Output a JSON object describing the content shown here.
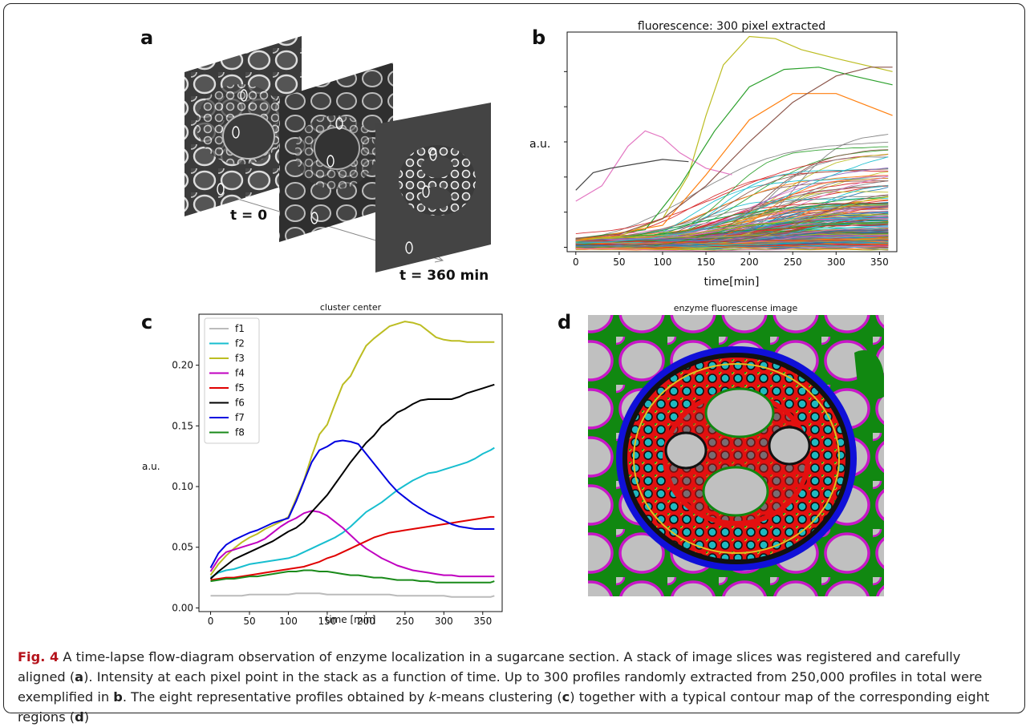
{
  "panel_labels": {
    "a": "a",
    "b": "b",
    "c": "c",
    "d": "d"
  },
  "panel_a": {
    "t0_label": "t = 0",
    "t360_label": "t = 360 min",
    "image_desc": "stack of three fluorescence image slices of a sugarcane section with ellipse markers"
  },
  "panel_d": {
    "title": "enzyme fluorescense image",
    "colors": {
      "gray": "#c0c0c0",
      "green": "#118811",
      "magenta": "#c817c8",
      "blue": "#1010d8",
      "red": "#e31010",
      "cyan": "#20b8c0",
      "black": "#111111",
      "yellow": "#e0c020"
    }
  },
  "caption": {
    "fig_label": "Fig. 4",
    "s1": " A time-lapse flow-diagram observation of enzyme localization in a sugarcane section. A stack of image slices was registered and carefully aligned (",
    "a": "a",
    "s2": "). Intensity at each pixel point in the stack as a function of time. Up to 300 profiles randomly extracted from 250,000 profiles in total were exemplified in ",
    "b": "b",
    "s3": ". The eight representative profiles obtained by ",
    "k": "k",
    "s4": "-means clustering (",
    "c": "c",
    "s5": ") together with a typical contour map of the corresponding eight regions (",
    "d": "d",
    "s6": ")"
  },
  "chart_data": [
    {
      "panel": "b",
      "type": "line",
      "title": "fluorescence: 300 pixel extracted",
      "xlabel": "time[min]",
      "ylabel": "a.u.",
      "xlim": [
        -10,
        370
      ],
      "ylim": [
        0,
        1
      ],
      "x_ticks": [
        0,
        50,
        100,
        150,
        200,
        250,
        300,
        350
      ],
      "y_ticks_unlabeled": true,
      "series_count": 300,
      "representative_series": [
        {
          "color": "#bcbd22",
          "x": [
            0,
            50,
            100,
            130,
            150,
            170,
            200,
            230,
            260,
            300,
            365
          ],
          "y": [
            0.05,
            0.07,
            0.15,
            0.35,
            0.62,
            0.85,
            0.98,
            0.97,
            0.92,
            0.88,
            0.82
          ]
        },
        {
          "color": "#e377c2",
          "x": [
            0,
            30,
            60,
            80,
            100,
            120,
            150,
            180
          ],
          "y": [
            0.23,
            0.3,
            0.48,
            0.55,
            0.52,
            0.45,
            0.38,
            0.35
          ]
        },
        {
          "color": "#2ca02c",
          "x": [
            0,
            80,
            120,
            160,
            200,
            240,
            280,
            320,
            365
          ],
          "y": [
            0.06,
            0.1,
            0.3,
            0.55,
            0.75,
            0.83,
            0.84,
            0.8,
            0.76
          ]
        },
        {
          "color": "#ff7f0e",
          "x": [
            0,
            100,
            150,
            200,
            250,
            300,
            365
          ],
          "y": [
            0.05,
            0.12,
            0.35,
            0.6,
            0.72,
            0.72,
            0.62
          ]
        },
        {
          "color": "#444444",
          "x": [
            0,
            20,
            40,
            70,
            100,
            130
          ],
          "y": [
            0.28,
            0.36,
            0.38,
            0.4,
            0.42,
            0.41
          ]
        },
        {
          "color": "#8c564b",
          "x": [
            0,
            50,
            100,
            150,
            200,
            250,
            300,
            340,
            365
          ],
          "y": [
            0.06,
            0.08,
            0.15,
            0.3,
            0.5,
            0.68,
            0.8,
            0.84,
            0.84
          ]
        }
      ]
    },
    {
      "panel": "c",
      "type": "line",
      "title": "cluster center",
      "xlabel": "time [min]",
      "ylabel": "a.u.",
      "xlim": [
        -15,
        375
      ],
      "ylim": [
        -0.003,
        0.242
      ],
      "x_ticks": [
        0,
        50,
        100,
        150,
        200,
        250,
        300,
        350
      ],
      "y_ticks": [
        0.0,
        0.05,
        0.1,
        0.15,
        0.2
      ],
      "legend_position": "top-left",
      "x": [
        0,
        10,
        20,
        30,
        40,
        50,
        60,
        70,
        80,
        90,
        100,
        110,
        120,
        130,
        140,
        150,
        160,
        170,
        180,
        190,
        200,
        210,
        220,
        230,
        240,
        250,
        260,
        270,
        280,
        290,
        300,
        310,
        320,
        330,
        340,
        350,
        360,
        365
      ],
      "series": [
        {
          "name": "f1",
          "color": "#bbbbbb",
          "values": [
            0.01,
            0.01,
            0.01,
            0.01,
            0.01,
            0.011,
            0.011,
            0.011,
            0.011,
            0.011,
            0.011,
            0.012,
            0.012,
            0.012,
            0.012,
            0.011,
            0.011,
            0.011,
            0.011,
            0.011,
            0.011,
            0.011,
            0.011,
            0.011,
            0.01,
            0.01,
            0.01,
            0.01,
            0.01,
            0.01,
            0.01,
            0.009,
            0.009,
            0.009,
            0.009,
            0.009,
            0.009,
            0.01
          ]
        },
        {
          "name": "f2",
          "color": "#17becf",
          "values": [
            0.025,
            0.029,
            0.031,
            0.032,
            0.034,
            0.036,
            0.037,
            0.038,
            0.039,
            0.04,
            0.041,
            0.043,
            0.046,
            0.049,
            0.052,
            0.055,
            0.058,
            0.062,
            0.067,
            0.073,
            0.079,
            0.083,
            0.087,
            0.092,
            0.097,
            0.101,
            0.105,
            0.108,
            0.111,
            0.112,
            0.114,
            0.116,
            0.118,
            0.12,
            0.123,
            0.127,
            0.13,
            0.132
          ]
        },
        {
          "name": "f3",
          "color": "#bcbd22",
          "values": [
            0.027,
            0.036,
            0.043,
            0.049,
            0.054,
            0.058,
            0.061,
            0.065,
            0.068,
            0.071,
            0.075,
            0.09,
            0.105,
            0.125,
            0.143,
            0.151,
            0.168,
            0.184,
            0.191,
            0.204,
            0.216,
            0.222,
            0.227,
            0.232,
            0.234,
            0.236,
            0.235,
            0.233,
            0.228,
            0.223,
            0.221,
            0.22,
            0.22,
            0.219,
            0.219,
            0.219,
            0.219,
            0.219
          ]
        },
        {
          "name": "f4",
          "color": "#c000c0",
          "values": [
            0.03,
            0.04,
            0.046,
            0.048,
            0.05,
            0.052,
            0.054,
            0.057,
            0.062,
            0.067,
            0.071,
            0.074,
            0.078,
            0.08,
            0.079,
            0.076,
            0.071,
            0.066,
            0.06,
            0.054,
            0.049,
            0.045,
            0.041,
            0.038,
            0.035,
            0.033,
            0.031,
            0.03,
            0.029,
            0.028,
            0.027,
            0.027,
            0.026,
            0.026,
            0.026,
            0.026,
            0.026,
            0.026
          ]
        },
        {
          "name": "f5",
          "color": "#e00000",
          "values": [
            0.023,
            0.024,
            0.025,
            0.025,
            0.026,
            0.027,
            0.028,
            0.029,
            0.03,
            0.031,
            0.032,
            0.033,
            0.034,
            0.036,
            0.038,
            0.041,
            0.043,
            0.046,
            0.049,
            0.052,
            0.055,
            0.058,
            0.06,
            0.062,
            0.063,
            0.064,
            0.065,
            0.066,
            0.067,
            0.068,
            0.069,
            0.07,
            0.071,
            0.072,
            0.073,
            0.074,
            0.075,
            0.075
          ]
        },
        {
          "name": "f6",
          "color": "#000000",
          "values": [
            0.024,
            0.03,
            0.035,
            0.04,
            0.043,
            0.046,
            0.049,
            0.052,
            0.055,
            0.059,
            0.063,
            0.066,
            0.071,
            0.079,
            0.086,
            0.093,
            0.102,
            0.111,
            0.12,
            0.128,
            0.136,
            0.142,
            0.15,
            0.155,
            0.161,
            0.164,
            0.168,
            0.171,
            0.172,
            0.172,
            0.172,
            0.172,
            0.174,
            0.177,
            0.179,
            0.181,
            0.183,
            0.184
          ]
        },
        {
          "name": "f7",
          "color": "#0000e0",
          "values": [
            0.033,
            0.045,
            0.052,
            0.056,
            0.059,
            0.062,
            0.064,
            0.067,
            0.07,
            0.072,
            0.074,
            0.088,
            0.104,
            0.12,
            0.13,
            0.133,
            0.137,
            0.138,
            0.137,
            0.135,
            0.127,
            0.119,
            0.111,
            0.103,
            0.096,
            0.091,
            0.086,
            0.082,
            0.078,
            0.075,
            0.072,
            0.069,
            0.067,
            0.066,
            0.065,
            0.065,
            0.065,
            0.065
          ]
        },
        {
          "name": "f8",
          "color": "#1a8a1a",
          "values": [
            0.022,
            0.023,
            0.024,
            0.024,
            0.025,
            0.026,
            0.026,
            0.027,
            0.028,
            0.029,
            0.03,
            0.03,
            0.031,
            0.031,
            0.03,
            0.03,
            0.029,
            0.028,
            0.027,
            0.027,
            0.026,
            0.025,
            0.025,
            0.024,
            0.023,
            0.023,
            0.023,
            0.022,
            0.022,
            0.021,
            0.021,
            0.021,
            0.021,
            0.021,
            0.021,
            0.021,
            0.021,
            0.022
          ]
        }
      ]
    }
  ]
}
